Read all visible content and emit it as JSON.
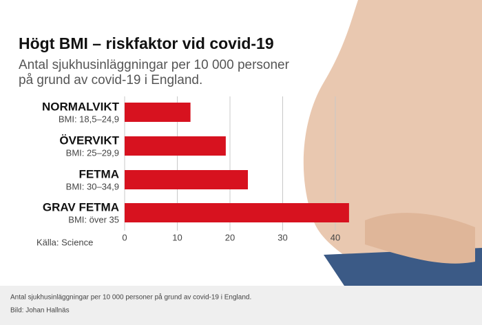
{
  "chart_data": {
    "type": "bar",
    "orientation": "horizontal",
    "title": "Högt BMI – riskfaktor vid covid-19",
    "subtitle": [
      "Antal sjukhusinläggningar per 10 000 personer",
      "på grund av covid-19 i England."
    ],
    "categories": [
      "NORMALVIKT",
      "ÖVERVIKT",
      "FETMA",
      "GRAV FETMA"
    ],
    "category_sublabels": [
      "BMI: 18,5–24,9",
      "BMI: 25–29,9",
      "BMI: 30–34,9",
      "BMI: över 35"
    ],
    "values": [
      12.5,
      19.2,
      23.4,
      42.6
    ],
    "color": "#d7121f",
    "xlim": [
      0,
      45
    ],
    "xticks": [
      0,
      10,
      20,
      30,
      40
    ],
    "grid": true,
    "source": "Källa: Science"
  },
  "caption": {
    "text": "Antal sjukhusinläggningar per 10 000 personer på grund av covid-19 i England.",
    "credit": "Bild: Johan Hallnäs"
  }
}
